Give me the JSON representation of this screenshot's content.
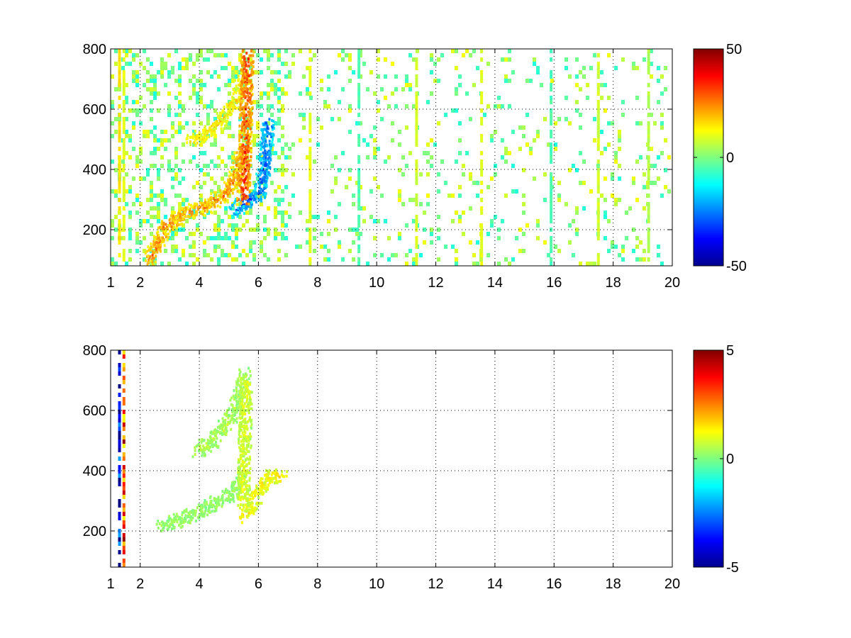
{
  "chart_data": [
    {
      "type": "heatmap",
      "title": "",
      "xlabel": "",
      "ylabel": "",
      "xlim": [
        1,
        20
      ],
      "ylim": [
        80,
        800
      ],
      "x_ticks": [
        "1",
        "2",
        "4",
        "6",
        "8",
        "10",
        "12",
        "14",
        "16",
        "18",
        "20"
      ],
      "x_tick_values": [
        1,
        2,
        4,
        6,
        8,
        10,
        12,
        14,
        16,
        18,
        20
      ],
      "y_ticks": [
        "800",
        "600",
        "400",
        "200"
      ],
      "y_tick_values": [
        800,
        600,
        400,
        200
      ],
      "grid": true,
      "colormap": "jet",
      "colorbar": {
        "min": -50,
        "max": 50,
        "ticks": [
          "50",
          "0",
          "-50"
        ],
        "tick_values": [
          50,
          0,
          -50
        ]
      },
      "features": [
        {
          "name": "",
          "x": [
            2.3,
            2.8,
            3.5,
            4.2,
            4.8,
            5.2,
            5.45
          ],
          "y": [
            100,
            210,
            260,
            280,
            320,
            380,
            480
          ],
          "value": 30
        },
        {
          "name": "",
          "x": [
            3.7,
            4.2,
            4.8,
            5.3,
            5.5
          ],
          "y": [
            500,
            520,
            580,
            650,
            720
          ],
          "value": 20
        },
        {
          "name": "",
          "x": [
            5.2,
            5.6,
            6.0,
            6.2,
            6.3
          ],
          "y": [
            270,
            300,
            320,
            420,
            560
          ],
          "value": -35
        },
        {
          "name": "",
          "x": [
            5.45,
            5.5,
            5.55,
            5.6
          ],
          "y": [
            300,
            420,
            600,
            790
          ],
          "value": 40
        }
      ],
      "stripes": [
        {
          "x": 1.3,
          "value": 15
        },
        {
          "x": 1.45,
          "value": 10
        },
        {
          "x": 7.75,
          "value": 10
        },
        {
          "x": 9.4,
          "value": -5
        },
        {
          "x": 11.35,
          "value": 8
        },
        {
          "x": 13.55,
          "value": 10
        },
        {
          "x": 15.9,
          "value": -5
        },
        {
          "x": 17.5,
          "value": 8
        },
        {
          "x": 19.2,
          "value": 5
        }
      ]
    },
    {
      "type": "heatmap",
      "title": "",
      "xlabel": "",
      "ylabel": "",
      "xlim": [
        1,
        20
      ],
      "ylim": [
        80,
        800
      ],
      "x_ticks": [
        "1",
        "2",
        "4",
        "6",
        "8",
        "10",
        "12",
        "14",
        "16",
        "18",
        "20"
      ],
      "x_tick_values": [
        1,
        2,
        4,
        6,
        8,
        10,
        12,
        14,
        16,
        18,
        20
      ],
      "y_ticks": [
        "800",
        "600",
        "400",
        "200"
      ],
      "y_tick_values": [
        800,
        600,
        400,
        200
      ],
      "grid": true,
      "colormap": "jet",
      "colorbar": {
        "min": -5,
        "max": 5,
        "ticks": [
          "5",
          "0",
          "-5"
        ],
        "tick_values": [
          5,
          0,
          -5
        ]
      },
      "features": [
        {
          "name": "",
          "x": [
            2.7,
            3.3,
            4.0,
            4.6,
            5.1,
            5.4
          ],
          "y": [
            220,
            240,
            270,
            300,
            330,
            380
          ],
          "value": 0.3
        },
        {
          "name": "",
          "x": [
            3.9,
            4.4,
            4.9,
            5.3,
            5.5
          ],
          "y": [
            470,
            500,
            560,
            640,
            730
          ],
          "value": 0.6
        },
        {
          "name": "",
          "x": [
            5.5,
            5.8,
            6.1,
            6.4,
            6.8
          ],
          "y": [
            250,
            300,
            360,
            390,
            380
          ],
          "value": 1.8
        },
        {
          "name": "",
          "x": [
            5.45,
            5.5,
            5.55
          ],
          "y": [
            300,
            450,
            700
          ],
          "value": 1.2
        }
      ],
      "stripes": [
        {
          "x": 1.3,
          "value": -4
        },
        {
          "x": 1.45,
          "value": 3
        }
      ]
    }
  ]
}
